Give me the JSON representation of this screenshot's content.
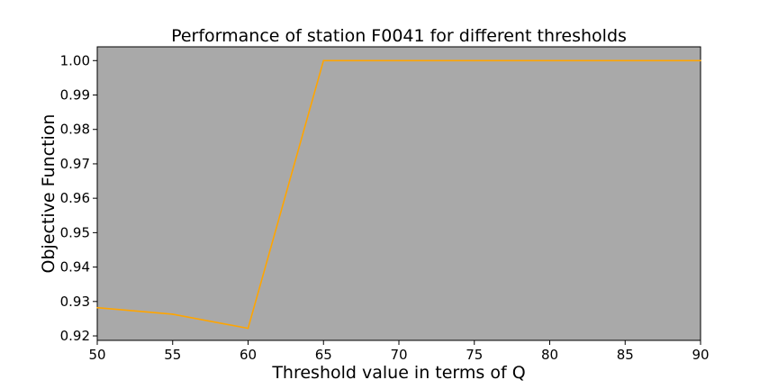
{
  "chart_data": {
    "type": "line",
    "title": "Performance of station F0041 for different thresholds",
    "xlabel": "Threshold value in terms of Q",
    "ylabel": "Objective Function",
    "x": [
      50,
      55,
      60,
      65,
      70,
      75,
      80,
      85,
      90
    ],
    "series": [
      {
        "values": [
          0.9282,
          0.9263,
          0.9222,
          1.0,
          1.0,
          1.0,
          1.0,
          1.0,
          1.0
        ]
      }
    ],
    "xlim": [
      50,
      90
    ],
    "ylim": [
      0.9187,
      1.004
    ],
    "xticks": [
      50,
      55,
      60,
      65,
      70,
      75,
      80,
      85,
      90
    ],
    "yticks": [
      0.92,
      0.93,
      0.94,
      0.95,
      0.96,
      0.97,
      0.98,
      0.99,
      1.0
    ],
    "ytick_labels": [
      "0.92",
      "0.93",
      "0.94",
      "0.95",
      "0.96",
      "0.97",
      "0.98",
      "0.99",
      "1.00"
    ],
    "grid": false,
    "colors": {
      "line": "#ffa500",
      "plot_background": "#a9a9a9",
      "figure_background": "#ffffff"
    }
  }
}
